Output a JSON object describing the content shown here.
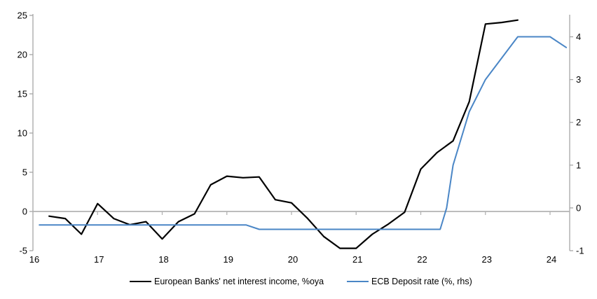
{
  "colors": {
    "background": "#ffffff",
    "axis_line": "#a6a6a6",
    "zero_line": "#b3b3b3",
    "text": "#000000",
    "series_nii": "#000000",
    "series_ecb": "#4a86c6"
  },
  "chart_data": {
    "type": "line",
    "title": "",
    "xlabel": "",
    "ylabel_left": "",
    "ylabel_right": "",
    "grid": false,
    "zero_line": true,
    "legend_position": "bottom",
    "x_axis": {
      "tick_labels": [
        "16",
        "17",
        "18",
        "19",
        "20",
        "21",
        "22",
        "23",
        "24"
      ],
      "tick_years": [
        2016,
        2017,
        2018,
        2019,
        2020,
        2021,
        2022,
        2023,
        2024
      ],
      "range": [
        2016,
        2024.3
      ]
    },
    "left_axis": {
      "tick_labels": [
        "25",
        "20",
        "15",
        "10",
        "5",
        "0",
        "-5"
      ],
      "ticks": [
        25,
        20,
        15,
        10,
        5,
        0,
        -5
      ],
      "range": [
        -5,
        25
      ]
    },
    "right_axis": {
      "tick_labels": [
        "4",
        "3",
        "2",
        "1",
        "0",
        "-1"
      ],
      "ticks": [
        4,
        3,
        2,
        1,
        0,
        -1
      ],
      "range": [
        -1,
        4.5
      ]
    },
    "series": [
      {
        "name": "European Banks' net interest income, %oya",
        "axis": "left",
        "color": "#000000",
        "points": [
          [
            2016.25,
            -0.6
          ],
          [
            2016.5,
            -0.9
          ],
          [
            2016.75,
            -2.9
          ],
          [
            2017.0,
            1.0
          ],
          [
            2017.25,
            -0.9
          ],
          [
            2017.5,
            -1.7
          ],
          [
            2017.75,
            -1.3
          ],
          [
            2018.0,
            -3.5
          ],
          [
            2018.25,
            -1.3
          ],
          [
            2018.5,
            -0.3
          ],
          [
            2018.75,
            3.4
          ],
          [
            2019.0,
            4.5
          ],
          [
            2019.25,
            4.3
          ],
          [
            2019.5,
            4.4
          ],
          [
            2019.75,
            1.5
          ],
          [
            2020.0,
            1.1
          ],
          [
            2020.25,
            -0.9
          ],
          [
            2020.5,
            -3.2
          ],
          [
            2020.75,
            -4.7
          ],
          [
            2021.0,
            -4.7
          ],
          [
            2021.25,
            -2.9
          ],
          [
            2021.5,
            -1.6
          ],
          [
            2021.75,
            -0.1
          ],
          [
            2022.0,
            5.4
          ],
          [
            2022.25,
            7.5
          ],
          [
            2022.5,
            9.0
          ],
          [
            2022.75,
            14.0
          ],
          [
            2023.0,
            23.9
          ],
          [
            2023.25,
            24.1
          ],
          [
            2023.5,
            24.4
          ]
        ]
      },
      {
        "name": "ECB Deposit rate (%, rhs)",
        "axis": "right",
        "color": "#4a86c6",
        "points": [
          [
            2016.1,
            -0.4
          ],
          [
            2019.3,
            -0.4
          ],
          [
            2019.5,
            -0.5
          ],
          [
            2022.3,
            -0.5
          ],
          [
            2022.4,
            0.0
          ],
          [
            2022.5,
            1.0
          ],
          [
            2022.75,
            2.25
          ],
          [
            2023.0,
            3.0
          ],
          [
            2023.25,
            3.5
          ],
          [
            2023.5,
            4.0
          ],
          [
            2024.0,
            4.0
          ],
          [
            2024.25,
            3.75
          ]
        ]
      }
    ]
  }
}
